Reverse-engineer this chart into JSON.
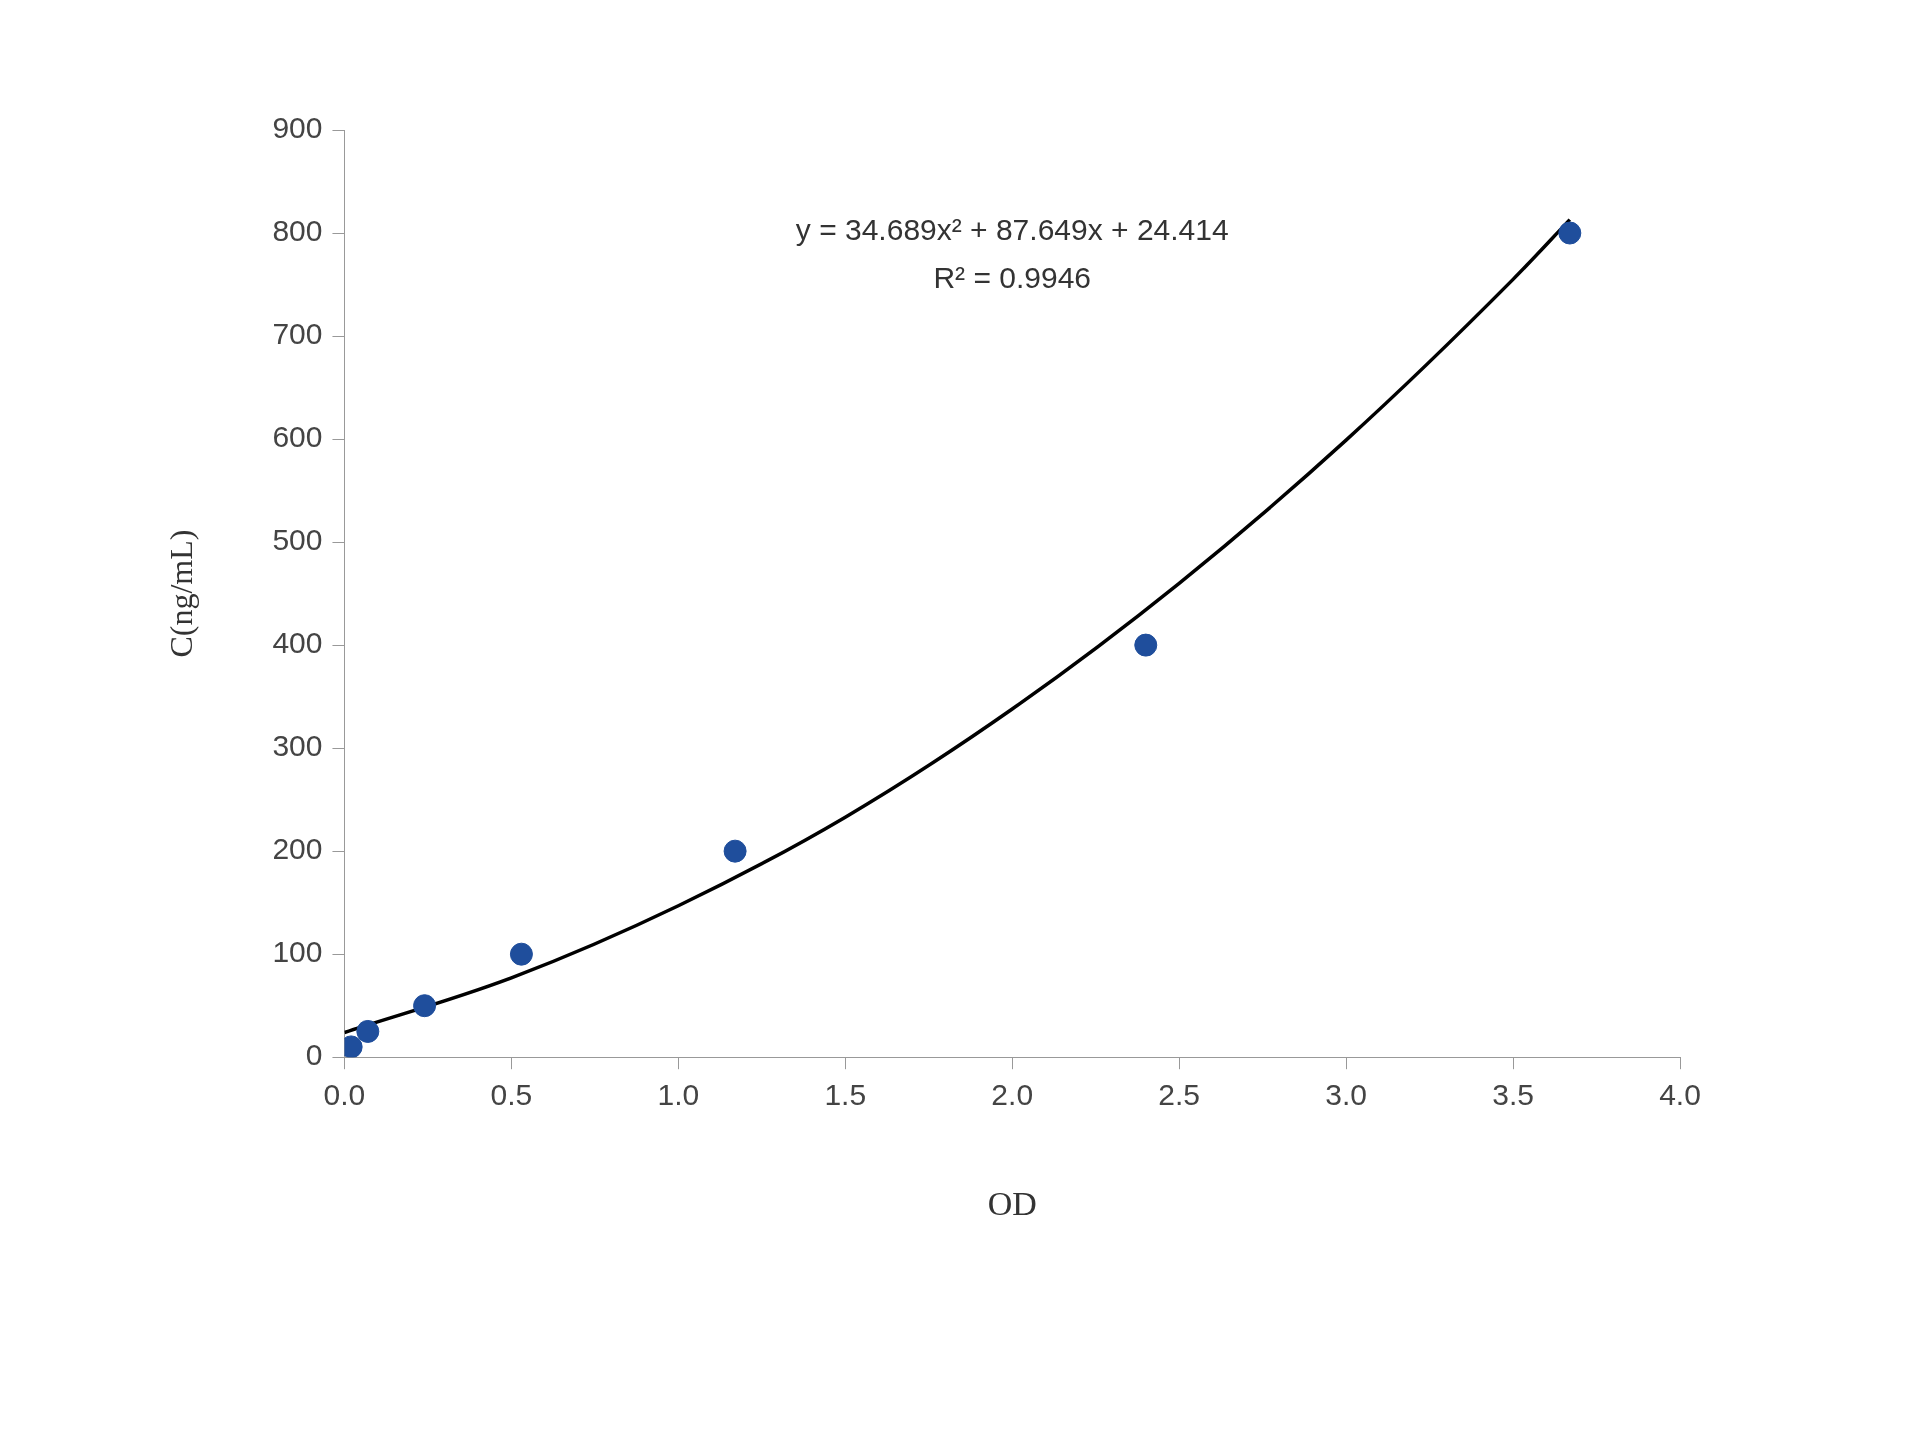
{
  "chart_data": {
    "type": "scatter",
    "xlabel": "OD",
    "ylabel": "C(ng/mL)",
    "xlim": [
      0,
      4
    ],
    "xticks": [
      {
        "value": 0,
        "label": "0.0"
      },
      {
        "value": 0.5,
        "label": "0.5"
      },
      {
        "value": 1,
        "label": "1.0"
      },
      {
        "value": 1.5,
        "label": "1.5"
      },
      {
        "value": 2,
        "label": "2.0"
      },
      {
        "value": 2.5,
        "label": "2.5"
      },
      {
        "value": 3,
        "label": "3.0"
      },
      {
        "value": 3.5,
        "label": "3.5"
      },
      {
        "value": 4,
        "label": "4.0"
      }
    ],
    "ylim": [
      0,
      900
    ],
    "yticks": [
      0,
      100,
      200,
      300,
      400,
      500,
      600,
      700,
      800,
      900
    ],
    "grid": false,
    "marker": "circle",
    "annotations": [
      "y = 34.689x² + 87.649x + 24.414",
      "R² = 0.9946"
    ],
    "series": [
      {
        "color": "#1f4e9c",
        "x": [
          0.02,
          0.07,
          0.24,
          0.53,
          1.17,
          2.4,
          3.67
        ],
        "values": [
          10,
          25,
          50,
          100,
          200,
          400,
          800
        ]
      },
      {
        "type": "line",
        "color": "#000000",
        "marker": "none",
        "x": [
          0,
          0.5,
          1,
          1.5,
          2,
          2.5,
          3,
          3.5,
          3.67
        ],
        "values": [
          24,
          77,
          147,
          233,
          338,
          460,
          599,
          755,
          813
        ]
      }
    ]
  }
}
